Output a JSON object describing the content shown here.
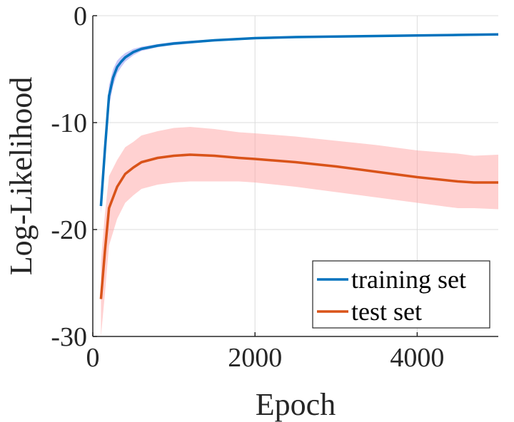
{
  "chart_data": {
    "type": "line",
    "title": "",
    "xlabel": "Epoch",
    "ylabel": "Log-Likelihood",
    "xlim": [
      0,
      5000
    ],
    "ylim": [
      -30,
      0
    ],
    "xticks": [
      0,
      2000,
      4000
    ],
    "xtick_labels": [
      "0",
      "2000",
      "4000"
    ],
    "yticks": [
      -30,
      -20,
      -10,
      0
    ],
    "ytick_labels": [
      "-30",
      "-20",
      "-10",
      "0"
    ],
    "grid": true,
    "legend_position": "bottom-right",
    "series": [
      {
        "name": "training set",
        "color": "#0072BD",
        "band_color": "#8080F0",
        "x": [
          100,
          150,
          200,
          250,
          300,
          350,
          400,
          500,
          600,
          800,
          1000,
          1500,
          2000,
          2500,
          3000,
          3500,
          4000,
          4500,
          5000
        ],
        "y": [
          -17.8,
          -12.5,
          -7.5,
          -5.8,
          -4.8,
          -4.3,
          -3.9,
          -3.4,
          -3.1,
          -2.8,
          -2.6,
          -2.3,
          -2.1,
          -2.0,
          -1.95,
          -1.9,
          -1.85,
          -1.8,
          -1.75
        ],
        "lower": [
          -18.5,
          -13.5,
          -8.5,
          -6.6,
          -5.4,
          -4.8,
          -4.3,
          -3.7,
          -3.3,
          -2.95,
          -2.75,
          -2.4,
          -2.2,
          -2.1,
          -2.05,
          -2.0,
          -1.95,
          -1.9,
          -1.85
        ],
        "upper": [
          -17.0,
          -11.5,
          -6.5,
          -5.0,
          -4.2,
          -3.8,
          -3.5,
          -3.1,
          -2.9,
          -2.65,
          -2.45,
          -2.2,
          -2.0,
          -1.9,
          -1.85,
          -1.8,
          -1.75,
          -1.7,
          -1.65
        ]
      },
      {
        "name": "test set",
        "color": "#D95319",
        "band_color": "#FF9999",
        "x": [
          100,
          150,
          200,
          300,
          400,
          500,
          600,
          800,
          1000,
          1200,
          1500,
          1800,
          2000,
          2500,
          3000,
          3500,
          4000,
          4500,
          4700,
          5000
        ],
        "y": [
          -26.5,
          -22.0,
          -18.0,
          -16.0,
          -14.8,
          -14.2,
          -13.7,
          -13.3,
          -13.1,
          -13.0,
          -13.1,
          -13.3,
          -13.4,
          -13.7,
          -14.1,
          -14.6,
          -15.1,
          -15.5,
          -15.6,
          -15.6
        ],
        "lower": [
          -30.0,
          -26.0,
          -21.5,
          -19.0,
          -17.5,
          -16.8,
          -16.2,
          -15.8,
          -15.6,
          -15.5,
          -15.5,
          -15.5,
          -15.6,
          -16.0,
          -16.5,
          -17.0,
          -17.5,
          -18.0,
          -18.0,
          -18.1
        ],
        "upper": [
          -23.0,
          -18.5,
          -15.0,
          -13.5,
          -12.3,
          -11.8,
          -11.2,
          -10.8,
          -10.5,
          -10.4,
          -10.6,
          -10.9,
          -11.0,
          -11.3,
          -11.7,
          -12.1,
          -12.6,
          -12.9,
          -13.1,
          -13.0
        ]
      }
    ]
  }
}
